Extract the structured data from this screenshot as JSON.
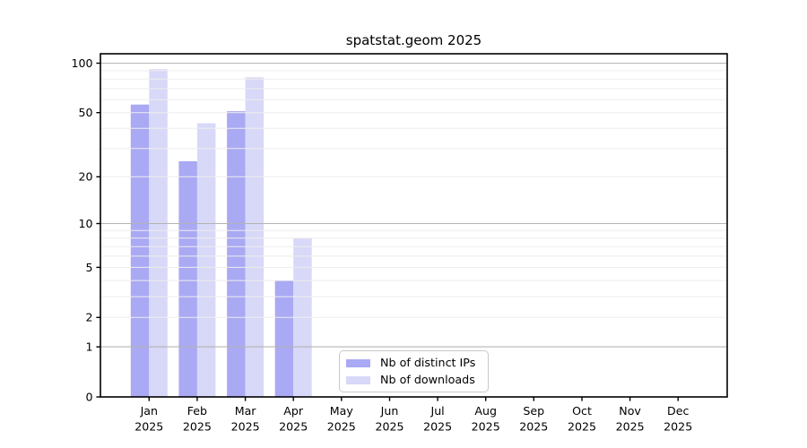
{
  "title": "spatstat.geom 2025",
  "chart_data": {
    "type": "bar",
    "title": "spatstat.geom 2025",
    "categories": [
      "Jan",
      "Feb",
      "Mar",
      "Apr",
      "May",
      "Jun",
      "Jul",
      "Aug",
      "Sep",
      "Oct",
      "Nov",
      "Dec"
    ],
    "year_label": "2025",
    "series": [
      {
        "name": "Nb of distinct IPs",
        "color": "#a9a9f4",
        "values": [
          56,
          25,
          51,
          4,
          0,
          0,
          0,
          0,
          0,
          0,
          0,
          0
        ]
      },
      {
        "name": "Nb of downloads",
        "color": "#d8d8f8",
        "values": [
          92,
          43,
          82,
          8,
          0,
          0,
          0,
          0,
          0,
          0,
          0,
          0
        ]
      }
    ],
    "xlabel": "",
    "ylabel": "",
    "yscale": "log1p",
    "ylim": [
      0,
      114
    ],
    "y_tick_labels": [
      0,
      1,
      2,
      5,
      10,
      20,
      50,
      100
    ],
    "y_major_gridlines": [
      1,
      10,
      100
    ],
    "y_minor_gridlines": [
      2,
      3,
      4,
      5,
      6,
      7,
      8,
      9,
      20,
      30,
      40,
      50,
      60,
      70,
      80,
      90
    ],
    "grid": "horizontal",
    "legend_position": "bottom-center-inside",
    "colors": {
      "bar_dark": "#a9a9f4",
      "bar_light": "#d8d8f8",
      "major_grid": "#b4b4b4",
      "minor_grid": "#ededed",
      "spine": "#000000",
      "text": "#000000",
      "legend_border": "#c9c9c9"
    }
  }
}
